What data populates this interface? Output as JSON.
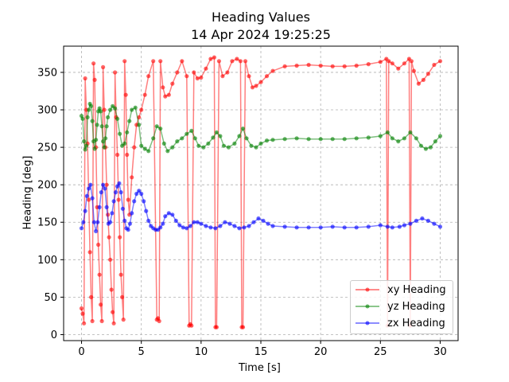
{
  "chart_data": {
    "type": "line",
    "title": "Heading Values",
    "subtitle": "14 Apr 2024 19:25:25",
    "xlabel": "Time [s]",
    "ylabel": "Heading [deg]",
    "xlim": [
      -1.5,
      31.5
    ],
    "ylim": [
      -8,
      385
    ],
    "xticks": [
      0,
      5,
      10,
      15,
      20,
      25,
      30
    ],
    "yticks": [
      0,
      50,
      100,
      150,
      200,
      250,
      300,
      350
    ],
    "grid": true,
    "legend_position": "bottom-right",
    "series": [
      {
        "name": "xy Heading",
        "color": "#ff0000",
        "x": [
          0,
          0.1,
          0.2,
          0.3,
          0.4,
          0.5,
          0.6,
          0.7,
          0.8,
          0.9,
          1.0,
          1.1,
          1.2,
          1.3,
          1.4,
          1.5,
          1.6,
          1.7,
          1.8,
          1.9,
          2.0,
          2.1,
          2.2,
          2.3,
          2.4,
          2.5,
          2.6,
          2.7,
          2.8,
          2.9,
          3.0,
          3.1,
          3.2,
          3.3,
          3.4,
          3.5,
          3.6,
          3.7,
          3.8,
          3.9,
          4.0,
          4.2,
          4.4,
          4.6,
          4.8,
          5.0,
          5.3,
          5.6,
          6.0,
          6.3,
          6.4,
          6.5,
          6.6,
          6.8,
          7.0,
          7.3,
          7.6,
          8.0,
          8.4,
          8.8,
          9.0,
          9.1,
          9.2,
          9.4,
          9.7,
          10.0,
          10.4,
          10.8,
          11.1,
          11.2,
          11.3,
          11.5,
          11.8,
          12.2,
          12.6,
          13.0,
          13.3,
          13.4,
          13.5,
          13.7,
          14.0,
          14.3,
          14.6,
          15.0,
          15.5,
          16.0,
          17.0,
          18.0,
          19.0,
          20.0,
          21.0,
          22.0,
          23.0,
          24.0,
          25.0,
          25.5,
          25.6,
          25.7,
          26.0,
          26.5,
          27.0,
          27.4,
          27.5,
          27.6,
          27.8,
          28.2,
          28.6,
          29.0,
          29.5,
          30.0
        ],
        "y": [
          35,
          28,
          15,
          342,
          300,
          255,
          180,
          110,
          50,
          18,
          362,
          340,
          250,
          170,
          120,
          80,
          40,
          18,
          357,
          300,
          250,
          200,
          160,
          130,
          100,
          60,
          30,
          15,
          350,
          290,
          240,
          180,
          130,
          80,
          50,
          20,
          365,
          320,
          240,
          180,
          160,
          210,
          250,
          280,
          290,
          300,
          320,
          345,
          365,
          20,
          22,
          18,
          365,
          330,
          318,
          320,
          335,
          350,
          365,
          345,
          12,
          14,
          12,
          350,
          342,
          343,
          355,
          368,
          370,
          10,
          10,
          365,
          345,
          350,
          365,
          368,
          365,
          10,
          10,
          365,
          345,
          330,
          332,
          337,
          345,
          352,
          358,
          359,
          360,
          359,
          358,
          358,
          359,
          361,
          364,
          368,
          12,
          365,
          362,
          355,
          362,
          368,
          12,
          365,
          352,
          335,
          340,
          348,
          360,
          365
        ]
      },
      {
        "name": "yz Heading",
        "color": "#008000",
        "x": [
          0,
          0.1,
          0.2,
          0.3,
          0.4,
          0.5,
          0.6,
          0.7,
          0.8,
          0.9,
          1.0,
          1.1,
          1.2,
          1.3,
          1.4,
          1.5,
          1.6,
          1.7,
          1.8,
          1.9,
          2.0,
          2.1,
          2.2,
          2.4,
          2.6,
          2.8,
          3.0,
          3.2,
          3.4,
          3.6,
          3.8,
          4.0,
          4.2,
          4.5,
          4.8,
          5.0,
          5.3,
          5.6,
          6.0,
          6.3,
          6.6,
          6.9,
          7.2,
          7.6,
          8.0,
          8.4,
          8.8,
          9.2,
          9.5,
          9.8,
          10.2,
          10.6,
          11.0,
          11.3,
          11.6,
          11.9,
          12.3,
          12.8,
          13.2,
          13.5,
          13.8,
          14.2,
          14.6,
          15.0,
          15.5,
          16.0,
          17.0,
          18.0,
          19.0,
          20.0,
          21.0,
          22.0,
          23.0,
          24.0,
          25.0,
          25.6,
          26.0,
          26.5,
          27.0,
          27.5,
          28.0,
          28.4,
          28.8,
          29.2,
          29.6,
          30.0
        ],
        "y": [
          292,
          288,
          258,
          247,
          252,
          290,
          300,
          308,
          305,
          285,
          258,
          248,
          260,
          280,
          298,
          302,
          298,
          278,
          258,
          250,
          262,
          278,
          290,
          300,
          305,
          302,
          288,
          268,
          252,
          255,
          270,
          285,
          300,
          303,
          280,
          252,
          248,
          245,
          262,
          278,
          275,
          255,
          245,
          250,
          258,
          262,
          268,
          272,
          262,
          252,
          250,
          255,
          263,
          270,
          265,
          252,
          250,
          255,
          265,
          275,
          262,
          252,
          250,
          255,
          259,
          260,
          261,
          262,
          261,
          261,
          261,
          261,
          262,
          263,
          265,
          270,
          262,
          258,
          262,
          270,
          262,
          252,
          248,
          250,
          258,
          265
        ]
      },
      {
        "name": "zx Heading",
        "color": "#0000ff",
        "x": [
          0,
          0.15,
          0.3,
          0.45,
          0.6,
          0.75,
          0.9,
          1.05,
          1.2,
          1.35,
          1.5,
          1.65,
          1.8,
          1.95,
          2.1,
          2.25,
          2.4,
          2.55,
          2.7,
          2.85,
          3.0,
          3.15,
          3.3,
          3.45,
          3.6,
          3.75,
          3.9,
          4.05,
          4.2,
          4.4,
          4.6,
          4.8,
          5.0,
          5.2,
          5.4,
          5.6,
          5.8,
          6.0,
          6.2,
          6.4,
          6.6,
          6.8,
          7.0,
          7.3,
          7.6,
          7.9,
          8.2,
          8.5,
          8.8,
          9.1,
          9.4,
          9.7,
          10.0,
          10.4,
          10.8,
          11.2,
          11.6,
          12.0,
          12.4,
          12.8,
          13.2,
          13.6,
          14.0,
          14.4,
          14.8,
          15.2,
          15.6,
          16.0,
          17.0,
          18.0,
          19.0,
          20.0,
          21.0,
          22.0,
          23.0,
          24.0,
          25.0,
          25.6,
          26.0,
          26.6,
          27.0,
          27.5,
          28.0,
          28.5,
          29.0,
          29.5,
          30.0
        ],
        "y": [
          142,
          150,
          165,
          185,
          195,
          200,
          182,
          150,
          138,
          150,
          170,
          190,
          200,
          195,
          170,
          148,
          150,
          162,
          178,
          190,
          198,
          202,
          190,
          168,
          152,
          142,
          140,
          148,
          162,
          178,
          188,
          192,
          188,
          178,
          165,
          152,
          145,
          142,
          140,
          140,
          143,
          148,
          158,
          162,
          160,
          152,
          146,
          143,
          142,
          145,
          150,
          150,
          148,
          145,
          143,
          142,
          145,
          150,
          148,
          145,
          142,
          143,
          145,
          150,
          155,
          152,
          148,
          145,
          144,
          143,
          143,
          143,
          144,
          143,
          143,
          144,
          146,
          144,
          143,
          144,
          146,
          148,
          152,
          155,
          152,
          148,
          144
        ]
      }
    ]
  }
}
